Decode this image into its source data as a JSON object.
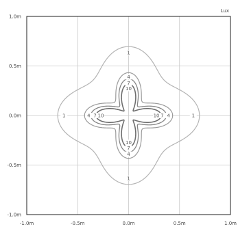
{
  "chart_data": {
    "type": "contour",
    "unit": "Lux",
    "x_ticks": [
      "-1.0m",
      "-0.5m",
      "0.0m",
      "0.5m",
      "1.0m"
    ],
    "y_ticks": [
      "1.0m",
      "0.5m",
      "0.0m",
      "-0.5m",
      "-1.0m"
    ],
    "xlim": [
      -1.0,
      1.0
    ],
    "ylim": [
      -1.0,
      1.0
    ],
    "grid": true,
    "contour_shape": "four-lobed",
    "levels": [
      {
        "value": 1,
        "label": "1",
        "lobe_reach_m": 0.67,
        "lobe_width_deg": 32,
        "color": "#b4b4b4",
        "stroke": 1.2
      },
      {
        "value": 4,
        "label": "4",
        "lobe_reach_m": 0.43,
        "lobe_width_deg": 26,
        "color": "#9a9a9a",
        "stroke": 1.2
      },
      {
        "value": 7,
        "label": "7",
        "lobe_reach_m": 0.37,
        "lobe_width_deg": 24,
        "color": "#858585",
        "stroke": 1.3
      },
      {
        "value": 10,
        "label": "10",
        "lobe_reach_m": 0.32,
        "lobe_width_deg": 21,
        "color": "#6e6e6e",
        "stroke": 1.6
      }
    ]
  }
}
